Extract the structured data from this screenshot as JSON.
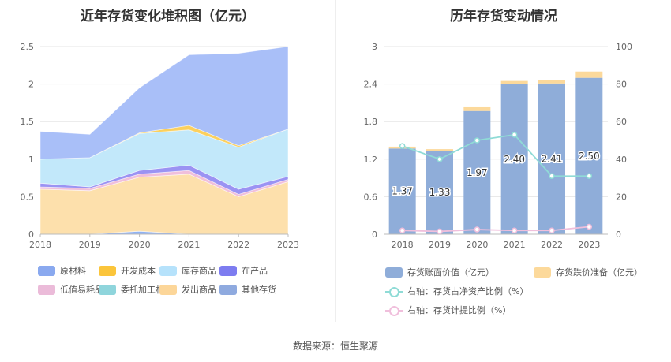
{
  "footer": "数据来源：恒生聚源",
  "chart_data": [
    {
      "type": "area",
      "stacked": true,
      "title": "近年存货变化堆积图（亿元）",
      "categories": [
        "2018",
        "2019",
        "2020",
        "2021",
        "2022",
        "2023"
      ],
      "yticks": [
        "0",
        "0.5",
        "1",
        "1.5",
        "2",
        "2.5"
      ],
      "ylim": [
        0,
        2.5
      ],
      "grid": true,
      "legend_position": "bottom",
      "series": [
        {
          "name": "原材料",
          "color": "#8fb2f4",
          "values": [
            0.0,
            0.0,
            0.04,
            0.0,
            0.0,
            0.0
          ]
        },
        {
          "name": "发出商品",
          "color": "#fde0ac",
          "values": [
            0.6,
            0.58,
            0.72,
            0.8,
            0.5,
            0.7
          ]
        },
        {
          "name": "低值易耗品",
          "color": "#f0bfdb",
          "values": [
            0.03,
            0.03,
            0.04,
            0.05,
            0.03,
            0.03
          ]
        },
        {
          "name": "在产品",
          "color": "#9b93f3",
          "values": [
            0.05,
            0.02,
            0.05,
            0.07,
            0.07,
            0.04
          ]
        },
        {
          "name": "库存商品",
          "color": "#c2e8fa",
          "values": [
            0.32,
            0.39,
            0.49,
            0.47,
            0.56,
            0.63
          ]
        },
        {
          "name": "开发成本",
          "color": "#fbd05e",
          "values": [
            0.0,
            0.0,
            0.01,
            0.06,
            0.02,
            0.0
          ]
        },
        {
          "name": "其他存货",
          "color": "#a9bff8",
          "values": [
            0.37,
            0.31,
            0.6,
            0.94,
            1.23,
            1.1
          ]
        }
      ],
      "legend": [
        {
          "name": "原材料",
          "color": "#8aa9ef"
        },
        {
          "name": "开发成本",
          "color": "#fbc53b"
        },
        {
          "name": "库存商品",
          "color": "#b6e2fb"
        },
        {
          "name": "在产品",
          "color": "#7d7cf0"
        },
        {
          "name": "低值易耗品",
          "color": "#ebbbd9"
        },
        {
          "name": "委托加工材料",
          "color": "#8fd5dc"
        },
        {
          "name": "发出商品",
          "color": "#fcd699"
        },
        {
          "name": "其他存货",
          "color": "#8faadf"
        }
      ]
    },
    {
      "type": "bar",
      "title": "历年存货变动情况",
      "categories": [
        "2018",
        "2019",
        "2020",
        "2021",
        "2022",
        "2023"
      ],
      "yticks_left": [
        "0",
        "0.6",
        "1.2",
        "1.8",
        "2.4",
        "3"
      ],
      "ylim_left": [
        0,
        3
      ],
      "yticks_right": [
        "0",
        "20",
        "40",
        "60",
        "80",
        "100"
      ],
      "ylim_right": [
        0,
        100
      ],
      "grid": true,
      "legend_position": "bottom",
      "series": [
        {
          "name": "存货账面价值（亿元）",
          "kind": "bar",
          "color": "#8fadd9",
          "values": [
            1.37,
            1.33,
            1.97,
            2.4,
            2.41,
            2.5
          ],
          "labels": [
            "1.37",
            "1.33",
            "1.97",
            "2.40",
            "2.41",
            "2.50"
          ]
        },
        {
          "name": "存货跌价准备（亿元）",
          "kind": "bar-stack",
          "color": "#fcd99b",
          "values": [
            0.03,
            0.03,
            0.06,
            0.05,
            0.05,
            0.1
          ]
        },
        {
          "name": "右轴：存货占净资产比例（%）",
          "kind": "line",
          "axis": "right",
          "color": "#8fdbd6",
          "values": [
            47,
            40,
            50,
            53,
            31,
            31
          ]
        },
        {
          "name": "右轴：存货计提比例（%）",
          "kind": "line",
          "axis": "right",
          "color": "#f0bfdc",
          "values": [
            2,
            1.5,
            2.5,
            2,
            2,
            4
          ]
        }
      ]
    }
  ]
}
